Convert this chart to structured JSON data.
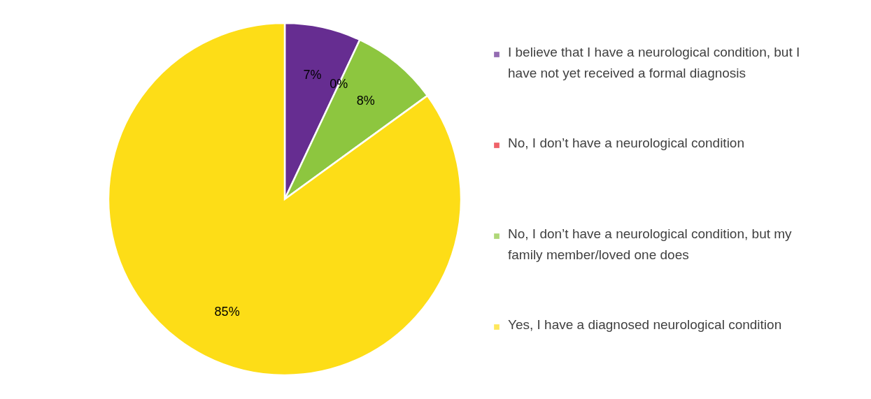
{
  "chart_data": {
    "type": "pie",
    "categories": [
      "I believe that I have a neurological condition, but I have not yet received a formal diagnosis",
      "No, I don’t have a neurological condition",
      "No, I don’t have a neurological condition, but my family member/loved one does",
      "Yes, I have a diagnosed neurological condition"
    ],
    "values": [
      7,
      0,
      8,
      85
    ],
    "colors": [
      "#662d91",
      "#e8202a",
      "#8dc63f",
      "#fddd17"
    ],
    "value_labels": [
      "7%",
      "0%",
      "8%",
      "85%"
    ],
    "legend": "right"
  }
}
